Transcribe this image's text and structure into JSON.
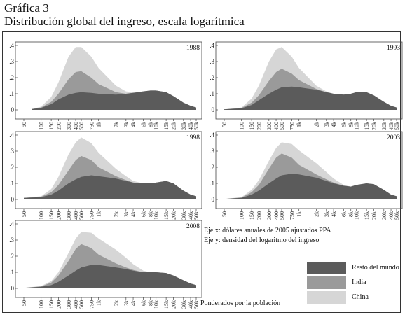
{
  "header": {
    "label": "Gráfica 3",
    "title": "Distribución global del ingreso, escala logarítmica"
  },
  "notes": {
    "x_axis": "Eje x: dólares anuales de 2005 ajustados PPA",
    "y_axis": "Eje y: densidad del logaritmo del ingreso",
    "weighting": "Ponderados por la población"
  },
  "colors": {
    "resto": "#5b5b5b",
    "india": "#9a9a9a",
    "china": "#d6d6d6"
  },
  "chart_data": {
    "type": "area",
    "x_scale": "log",
    "xlim": [
      50,
      50000
    ],
    "ylim": [
      0,
      0.4
    ],
    "grid": false,
    "stacked": true,
    "x_ticks": [
      50,
      100,
      150,
      200,
      300,
      400,
      500,
      750,
      1000,
      2000,
      3000,
      4000,
      6000,
      8000,
      10000,
      15000,
      20000,
      30000,
      40000,
      50000
    ],
    "x_tick_labels": [
      "50",
      "100",
      "150",
      "200",
      "300",
      "400",
      "500",
      "750",
      "1k",
      "2k",
      "3k",
      "4k",
      "6k",
      "8k",
      "10k",
      "15k",
      "20k",
      "30k",
      "40k",
      "50k"
    ],
    "y_ticks": [
      0,
      0.1,
      0.2,
      0.3,
      0.4
    ],
    "y_tick_labels": [
      "0",
      ".1",
      ".2",
      ".3",
      ".4"
    ],
    "legend": {
      "placement": "bottom-right",
      "entries": [
        "Resto del mundo",
        "India",
        "China"
      ]
    },
    "panels": [
      {
        "year": "1988",
        "x": [
          70,
          100,
          150,
          200,
          300,
          400,
          500,
          750,
          1000,
          2000,
          3000,
          4000,
          6000,
          8000,
          10000,
          15000,
          20000,
          30000,
          40000,
          50000
        ],
        "series": [
          {
            "name": "Resto del mundo",
            "values": [
              0.005,
              0.012,
              0.035,
              0.065,
              0.095,
              0.105,
              0.11,
              0.105,
              0.1,
              0.095,
              0.1,
              0.105,
              0.115,
              0.12,
              0.12,
              0.11,
              0.085,
              0.045,
              0.025,
              0.015
            ]
          },
          {
            "name": "India",
            "values": [
              0.005,
              0.015,
              0.05,
              0.1,
              0.19,
              0.235,
              0.24,
              0.2,
              0.16,
              0.11,
              0.1,
              0.105,
              0.115,
              0.12,
              0.12,
              0.11,
              0.085,
              0.045,
              0.025,
              0.015
            ]
          },
          {
            "name": "China",
            "values": [
              0.005,
              0.02,
              0.08,
              0.17,
              0.33,
              0.39,
              0.39,
              0.33,
              0.26,
              0.15,
              0.115,
              0.11,
              0.115,
              0.12,
              0.12,
              0.11,
              0.085,
              0.045,
              0.025,
              0.015
            ]
          }
        ]
      },
      {
        "year": "1993",
        "x": [
          50,
          100,
          150,
          200,
          300,
          400,
          500,
          750,
          1000,
          2000,
          3000,
          4000,
          6000,
          8000,
          10000,
          15000,
          20000,
          30000,
          40000,
          50000
        ],
        "series": [
          {
            "name": "Resto del mundo",
            "values": [
              0.003,
              0.01,
              0.03,
              0.06,
              0.1,
              0.125,
              0.14,
              0.145,
              0.14,
              0.125,
              0.11,
              0.1,
              0.095,
              0.1,
              0.11,
              0.11,
              0.09,
              0.05,
              0.025,
              0.015
            ]
          },
          {
            "name": "India",
            "values": [
              0.003,
              0.012,
              0.045,
              0.09,
              0.18,
              0.235,
              0.255,
              0.225,
              0.185,
              0.13,
              0.11,
              0.1,
              0.095,
              0.1,
              0.11,
              0.11,
              0.09,
              0.05,
              0.025,
              0.015
            ]
          },
          {
            "name": "China",
            "values": [
              0.003,
              0.015,
              0.07,
              0.15,
              0.3,
              0.375,
              0.39,
              0.33,
              0.26,
              0.15,
              0.115,
              0.1,
              0.095,
              0.1,
              0.11,
              0.11,
              0.09,
              0.05,
              0.025,
              0.015
            ]
          }
        ]
      },
      {
        "year": "1998",
        "x": [
          50,
          100,
          150,
          200,
          300,
          400,
          500,
          750,
          1000,
          2000,
          3000,
          4000,
          6000,
          8000,
          10000,
          15000,
          20000,
          30000,
          40000,
          50000
        ],
        "series": [
          {
            "name": "Resto del mundo",
            "values": [
              0.01,
              0.015,
              0.03,
              0.055,
              0.1,
              0.125,
              0.14,
              0.15,
              0.145,
              0.13,
              0.115,
              0.105,
              0.1,
              0.1,
              0.105,
              0.115,
              0.1,
              0.055,
              0.03,
              0.02
            ]
          },
          {
            "name": "India",
            "values": [
              0.01,
              0.017,
              0.045,
              0.09,
              0.18,
              0.245,
              0.27,
              0.245,
              0.2,
              0.145,
              0.12,
              0.105,
              0.1,
              0.1,
              0.105,
              0.115,
              0.1,
              0.055,
              0.03,
              0.02
            ]
          },
          {
            "name": "China",
            "values": [
              0.01,
              0.02,
              0.065,
              0.14,
              0.28,
              0.355,
              0.385,
              0.35,
              0.29,
              0.19,
              0.145,
              0.115,
              0.1,
              0.1,
              0.105,
              0.115,
              0.1,
              0.055,
              0.03,
              0.02
            ]
          }
        ]
      },
      {
        "year": "2003",
        "x": [
          50,
          100,
          150,
          200,
          300,
          400,
          500,
          750,
          1000,
          2000,
          3000,
          4000,
          6000,
          8000,
          10000,
          15000,
          20000,
          30000,
          40000,
          50000
        ],
        "series": [
          {
            "name": "Resto del mundo",
            "values": [
              0.003,
              0.01,
              0.03,
              0.055,
              0.1,
              0.13,
              0.15,
              0.16,
              0.155,
              0.135,
              0.115,
              0.1,
              0.085,
              0.08,
              0.09,
              0.1,
              0.095,
              0.06,
              0.03,
              0.02
            ]
          },
          {
            "name": "India",
            "values": [
              0.003,
              0.012,
              0.045,
              0.09,
              0.19,
              0.26,
              0.285,
              0.26,
              0.215,
              0.155,
              0.125,
              0.105,
              0.085,
              0.08,
              0.09,
              0.1,
              0.095,
              0.06,
              0.03,
              0.02
            ]
          },
          {
            "name": "China",
            "values": [
              0.003,
              0.015,
              0.06,
              0.12,
              0.24,
              0.32,
              0.355,
              0.345,
              0.305,
              0.225,
              0.17,
              0.13,
              0.09,
              0.08,
              0.09,
              0.1,
              0.095,
              0.06,
              0.03,
              0.02
            ]
          }
        ]
      },
      {
        "year": "2008",
        "x": [
          50,
          100,
          150,
          200,
          300,
          400,
          500,
          750,
          1000,
          2000,
          3000,
          4000,
          6000,
          8000,
          10000,
          15000,
          20000,
          30000,
          40000,
          50000
        ],
        "series": [
          {
            "name": "Resto del mundo",
            "values": [
              0.003,
              0.01,
              0.02,
              0.04,
              0.08,
              0.11,
              0.13,
              0.145,
              0.145,
              0.13,
              0.12,
              0.11,
              0.1,
              0.1,
              0.1,
              0.095,
              0.08,
              0.05,
              0.03,
              0.02
            ]
          },
          {
            "name": "India",
            "values": [
              0.003,
              0.012,
              0.035,
              0.08,
              0.17,
              0.245,
              0.275,
              0.25,
              0.21,
              0.155,
              0.13,
              0.115,
              0.1,
              0.1,
              0.1,
              0.095,
              0.08,
              0.05,
              0.03,
              0.02
            ]
          },
          {
            "name": "China",
            "values": [
              0.003,
              0.015,
              0.045,
              0.1,
              0.22,
              0.31,
              0.35,
              0.345,
              0.31,
              0.24,
              0.19,
              0.15,
              0.11,
              0.1,
              0.1,
              0.095,
              0.08,
              0.05,
              0.03,
              0.02
            ]
          }
        ]
      }
    ]
  }
}
